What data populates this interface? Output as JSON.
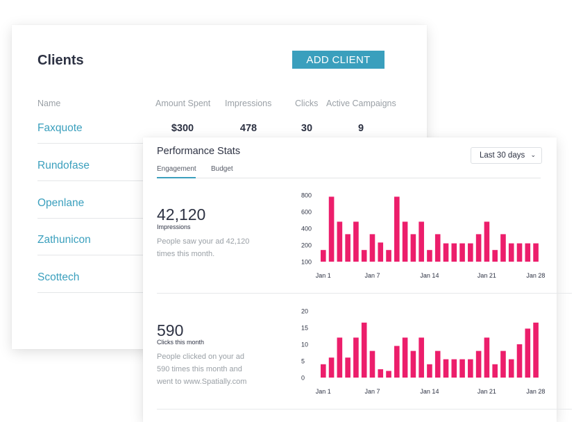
{
  "clients": {
    "title": "Clients",
    "add_button": "ADD CLIENT",
    "columns": [
      "Name",
      "Amount Spent",
      "Impressions",
      "Clicks",
      "Active Campaigns"
    ],
    "rows": [
      {
        "name": "Faxquote",
        "amount": "$300",
        "impressions": "478",
        "clicks": "30",
        "campaigns": "9"
      },
      {
        "name": "Rundofase"
      },
      {
        "name": "Openlane"
      },
      {
        "name": "Zathunicon"
      },
      {
        "name": "Scottech"
      }
    ]
  },
  "performance": {
    "title": "Performance Stats",
    "tabs": [
      {
        "label": "Engagement",
        "active": true
      },
      {
        "label": "Budget",
        "active": false
      }
    ],
    "range_select": "Last 30 days",
    "accent_color": "#3a9fbd",
    "bar_color": "#ec1e6b",
    "impressions": {
      "value": "42,120",
      "label": "Impressions",
      "description": "People saw your ad 42,120 times this month."
    },
    "clicks": {
      "value": "590",
      "label": "Clicks this month",
      "description_lines": [
        "People clicked on your ad",
        "590 times this month and",
        "went to www.Spatially.com"
      ]
    }
  },
  "chart_data": [
    {
      "type": "bar",
      "name": "impressions",
      "x_ticks": [
        "Jan 1",
        "Jan 7",
        "Jan 14",
        "Jan 21",
        "Jan 28"
      ],
      "y_ticks": [
        100,
        200,
        400,
        600,
        800
      ],
      "values": [
        170,
        780,
        480,
        330,
        480,
        170,
        330,
        230,
        170,
        780,
        480,
        330,
        480,
        170,
        330,
        220,
        220,
        220,
        220,
        330,
        480,
        170,
        330,
        220,
        220,
        220,
        220
      ]
    },
    {
      "type": "bar",
      "name": "clicks",
      "x_ticks": [
        "Jan 1",
        "Jan 7",
        "Jan 14",
        "Jan 21",
        "Jan 28"
      ],
      "y_ticks": [
        0,
        5,
        10,
        15,
        20
      ],
      "ylim": [
        0,
        20
      ],
      "values": [
        4,
        6,
        12,
        6,
        12,
        16.5,
        8,
        2.5,
        2,
        9.5,
        12,
        8,
        12,
        4,
        8,
        5.5,
        5.5,
        5.5,
        5.5,
        8,
        12,
        4,
        8,
        5.5,
        10,
        14.7,
        16.5
      ]
    }
  ]
}
